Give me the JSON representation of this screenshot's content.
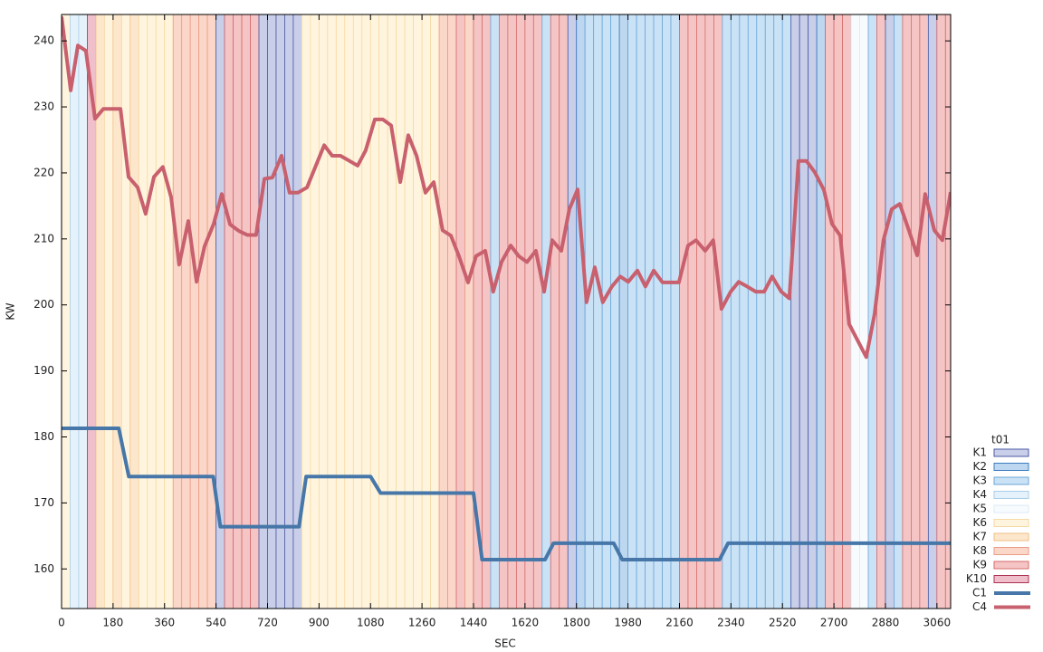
{
  "chart_data": {
    "type": "line",
    "x_label": "SEC",
    "y_label": "KW",
    "legend_title": "t01",
    "legend": "right",
    "xlim": [
      0,
      3108
    ],
    "ylim": [
      154,
      244
    ],
    "xticks": [
      0,
      180,
      360,
      540,
      720,
      900,
      1080,
      1260,
      1440,
      1620,
      1800,
      1980,
      2160,
      2340,
      2520,
      2700,
      2880,
      3060
    ],
    "yticks": [
      160,
      170,
      180,
      190,
      200,
      210,
      220,
      230,
      240
    ],
    "band_categories": [
      {
        "name": "K1",
        "color": "#c9cfe8",
        "border": "#4a58a6"
      },
      {
        "name": "K2",
        "color": "#bcd7ef",
        "border": "#3d7cc0"
      },
      {
        "name": "K3",
        "color": "#cae2f5",
        "border": "#6ea6d8"
      },
      {
        "name": "K4",
        "color": "#e6f2fb",
        "border": "#a9cfe9"
      },
      {
        "name": "K5",
        "color": "#f7fbfe",
        "border": "#dceaf6"
      },
      {
        "name": "K6",
        "color": "#fff5de",
        "border": "#f4d9a3"
      },
      {
        "name": "K7",
        "color": "#fde7cc",
        "border": "#f1bd86"
      },
      {
        "name": "K8",
        "color": "#fbd7c9",
        "border": "#e99c86"
      },
      {
        "name": "K9",
        "color": "#f5c5c5",
        "border": "#d66a6a"
      },
      {
        "name": "K10",
        "color": "#efbfcb",
        "border": "#ad3252"
      }
    ],
    "bands": {
      "x": [
        0,
        30,
        60,
        90,
        120,
        150,
        180,
        210,
        240,
        270,
        300,
        330,
        360,
        390,
        420,
        450,
        480,
        510,
        540,
        570,
        600,
        630,
        660,
        690,
        720,
        750,
        780,
        810,
        840,
        870,
        900,
        930,
        960,
        990,
        1020,
        1050,
        1080,
        1110,
        1140,
        1170,
        1200,
        1230,
        1260,
        1290,
        1320,
        1350,
        1380,
        1410,
        1440,
        1470,
        1500,
        1530,
        1560,
        1590,
        1620,
        1650,
        1680,
        1710,
        1740,
        1770,
        1800,
        1830,
        1860,
        1890,
        1920,
        1950,
        1980,
        2010,
        2040,
        2070,
        2100,
        2130,
        2160,
        2190,
        2220,
        2250,
        2280,
        2310,
        2340,
        2370,
        2400,
        2430,
        2460,
        2490,
        2520,
        2550,
        2580,
        2610,
        2640,
        2670,
        2700,
        2730,
        2760,
        2790,
        2820,
        2850,
        2880,
        2910,
        2940,
        2970,
        3000,
        3030,
        3060,
        3090
      ],
      "state": [
        "K6",
        "K4",
        "K4",
        "K10",
        "K7",
        "K6",
        "K7",
        "K6",
        "K7",
        "K6",
        "K6",
        "K6",
        "K6",
        "K8",
        "K8",
        "K8",
        "K8",
        "K8",
        "K1",
        "K9",
        "K9",
        "K9",
        "K9",
        "K1",
        "K1",
        "K1",
        "K1",
        "K1",
        "K6",
        "K6",
        "K6",
        "K6",
        "K6",
        "K6",
        "K6",
        "K6",
        "K6",
        "K6",
        "K6",
        "K6",
        "K6",
        "K6",
        "K6",
        "K6",
        "K8",
        "K8",
        "K9",
        "K8",
        "K9",
        "K9",
        "K3",
        "K9",
        "K9",
        "K9",
        "K9",
        "K9",
        "K3",
        "K9",
        "K9",
        "K1",
        "K2",
        "K3",
        "K3",
        "K3",
        "K3",
        "K2",
        "K3",
        "K3",
        "K3",
        "K3",
        "K3",
        "K3",
        "K9",
        "K9",
        "K9",
        "K9",
        "K9",
        "K3",
        "K3",
        "K3",
        "K3",
        "K3",
        "K3",
        "K3",
        "K3",
        "K1",
        "K1",
        "K1",
        "K2",
        "K9",
        "K9",
        "K9",
        "K5",
        "K5",
        "K3",
        "K9",
        "K1",
        "K3",
        "K9",
        "K9",
        "K9",
        "K1",
        "K9",
        "K9"
      ]
    },
    "series": [
      {
        "name": "C1",
        "color": "#4677a8",
        "x": [
          0,
          200,
          235,
          530,
          555,
          830,
          855,
          1080,
          1115,
          1440,
          1470,
          1690,
          1720,
          1930,
          1960,
          2300,
          2330,
          3108
        ],
        "values": [
          181.3,
          181.3,
          174,
          174,
          166.4,
          166.4,
          174,
          174,
          171.5,
          171.5,
          161.4,
          161.4,
          163.9,
          163.9,
          161.4,
          161.4,
          163.9,
          163.9
        ]
      },
      {
        "name": "C4",
        "color": "#c8606e",
        "x": [
          0,
          32,
          57,
          85,
          117,
          146,
          206,
          234,
          266,
          294,
          323,
          354,
          383,
          411,
          443,
          472,
          500,
          532,
          560,
          589,
          620,
          649,
          680,
          709,
          737,
          769,
          797,
          826,
          858,
          918,
          946,
          975,
          1035,
          1063,
          1095,
          1123,
          1152,
          1184,
          1212,
          1241,
          1272,
          1301,
          1332,
          1361,
          1389,
          1421,
          1449,
          1481,
          1509,
          1538,
          1570,
          1598,
          1627,
          1658,
          1687,
          1715,
          1747,
          1775,
          1804,
          1835,
          1864,
          1892,
          1924,
          1953,
          1981,
          2013,
          2041,
          2070,
          2101,
          2130,
          2158,
          2190,
          2218,
          2250,
          2278,
          2307,
          2339,
          2367,
          2396,
          2427,
          2456,
          2484,
          2516,
          2544,
          2576,
          2604,
          2633,
          2665,
          2693,
          2722,
          2753,
          2813,
          2842,
          2873,
          2902,
          2930,
          2962,
          2991,
          3019,
          3051,
          3079,
          3108
        ],
        "values": [
          243.7,
          232.5,
          239.3,
          238.5,
          228.2,
          229.7,
          229.7,
          219.4,
          217.8,
          213.8,
          219.4,
          220.9,
          216.3,
          206.1,
          212.7,
          203.5,
          208.9,
          212.3,
          216.8,
          212.2,
          211.2,
          210.6,
          210.6,
          219.1,
          219.3,
          222.6,
          217,
          217,
          217.8,
          224.2,
          222.6,
          222.6,
          221.1,
          223.4,
          228.1,
          228.1,
          227.2,
          218.6,
          225.7,
          222.6,
          217,
          218.6,
          211.3,
          210.5,
          207.4,
          203.4,
          207.4,
          208.2,
          202,
          206.5,
          209,
          207.4,
          206.5,
          208.2,
          202,
          209.8,
          208.2,
          214.5,
          217.5,
          200.4,
          205.7,
          200.4,
          202.8,
          204.3,
          203.5,
          205.2,
          202.8,
          205.2,
          203.4,
          203.4,
          203.4,
          209,
          209.8,
          208.2,
          209.8,
          199.4,
          202,
          203.5,
          202.8,
          202,
          202,
          204.3,
          202,
          201,
          221.8,
          221.8,
          220.1,
          217.4,
          212.3,
          210.5,
          197.1,
          192.1,
          198.6,
          209.8,
          214.5,
          215.3,
          211.3,
          207.5,
          216.8,
          211.3,
          209.8,
          217.1
        ]
      }
    ]
  }
}
